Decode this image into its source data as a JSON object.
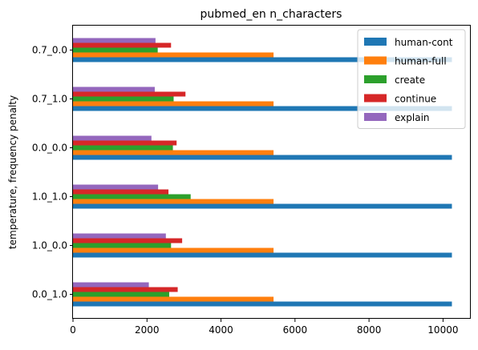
{
  "chart_data": {
    "type": "bar",
    "orientation": "horizontal",
    "title": "pubmed_en n_characters",
    "xlabel": "",
    "ylabel": "temperature, frequency penalty",
    "categories": [
      "0.0_1.0",
      "1.0_0.0",
      "1.0_1.0",
      "0.0_0.0",
      "0.7_1.0",
      "0.7_0.0"
    ],
    "xlim": [
      0,
      10750
    ],
    "xticks": [
      0,
      2000,
      4000,
      6000,
      8000,
      10000
    ],
    "grid": false,
    "legend_position": "upper right",
    "series": [
      {
        "name": "human-cont",
        "color": "#1f77b4",
        "values": [
          10240,
          10240,
          10240,
          10240,
          10240,
          10240
        ]
      },
      {
        "name": "human-full",
        "color": "#ff7f0e",
        "values": [
          5420,
          5420,
          5420,
          5420,
          5420,
          5420
        ]
      },
      {
        "name": "create",
        "color": "#2ca02c",
        "values": [
          2600,
          2650,
          3180,
          2700,
          2720,
          2290
        ]
      },
      {
        "name": "continue",
        "color": "#d62728",
        "values": [
          2830,
          2950,
          2580,
          2800,
          3040,
          2650
        ]
      },
      {
        "name": "explain",
        "color": "#9467bd",
        "values": [
          2050,
          2510,
          2300,
          2120,
          2210,
          2230
        ]
      }
    ]
  }
}
